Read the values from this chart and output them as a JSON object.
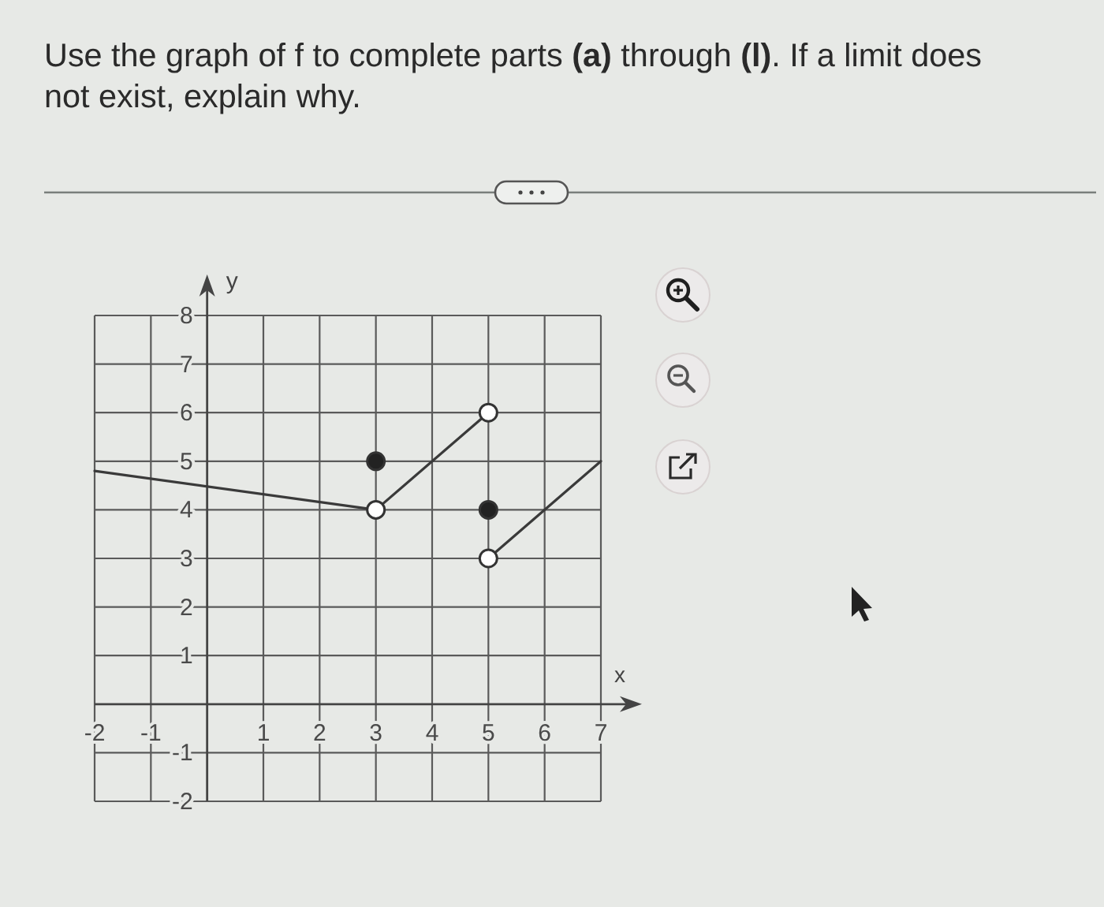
{
  "chart_data": {
    "type": "line",
    "title": "Use the graph of f to complete parts (a) through (l). If a limit does not exist, explain why.",
    "xlabel": "x",
    "ylabel": "y",
    "xlim": [
      -2,
      7
    ],
    "ylim": [
      -2,
      8
    ],
    "xticks": [
      -2,
      -1,
      1,
      2,
      3,
      4,
      5,
      6,
      7
    ],
    "yticks": [
      -2,
      -1,
      1,
      2,
      3,
      4,
      5,
      6,
      7,
      8
    ],
    "grid": true,
    "series": [
      {
        "color": "#3a3a3a",
        "x": [
          -2,
          3
        ],
        "values": [
          4.8,
          4
        ]
      },
      {
        "color": "#3a3a3a",
        "x": [
          3,
          5
        ],
        "values": [
          4,
          6
        ]
      },
      {
        "color": "#3a3a3a",
        "x": [
          5,
          7
        ],
        "values": [
          3,
          5
        ]
      },
      {
        "type": "scatter",
        "marker": "circle",
        "color": "#222222",
        "x": [
          3,
          5
        ],
        "values": [
          5,
          4
        ]
      },
      {
        "type": "scatter",
        "marker": "circle",
        "color": "#ffffff",
        "x": [
          3,
          5,
          5
        ],
        "values": [
          4,
          6,
          3
        ]
      }
    ]
  }
}
